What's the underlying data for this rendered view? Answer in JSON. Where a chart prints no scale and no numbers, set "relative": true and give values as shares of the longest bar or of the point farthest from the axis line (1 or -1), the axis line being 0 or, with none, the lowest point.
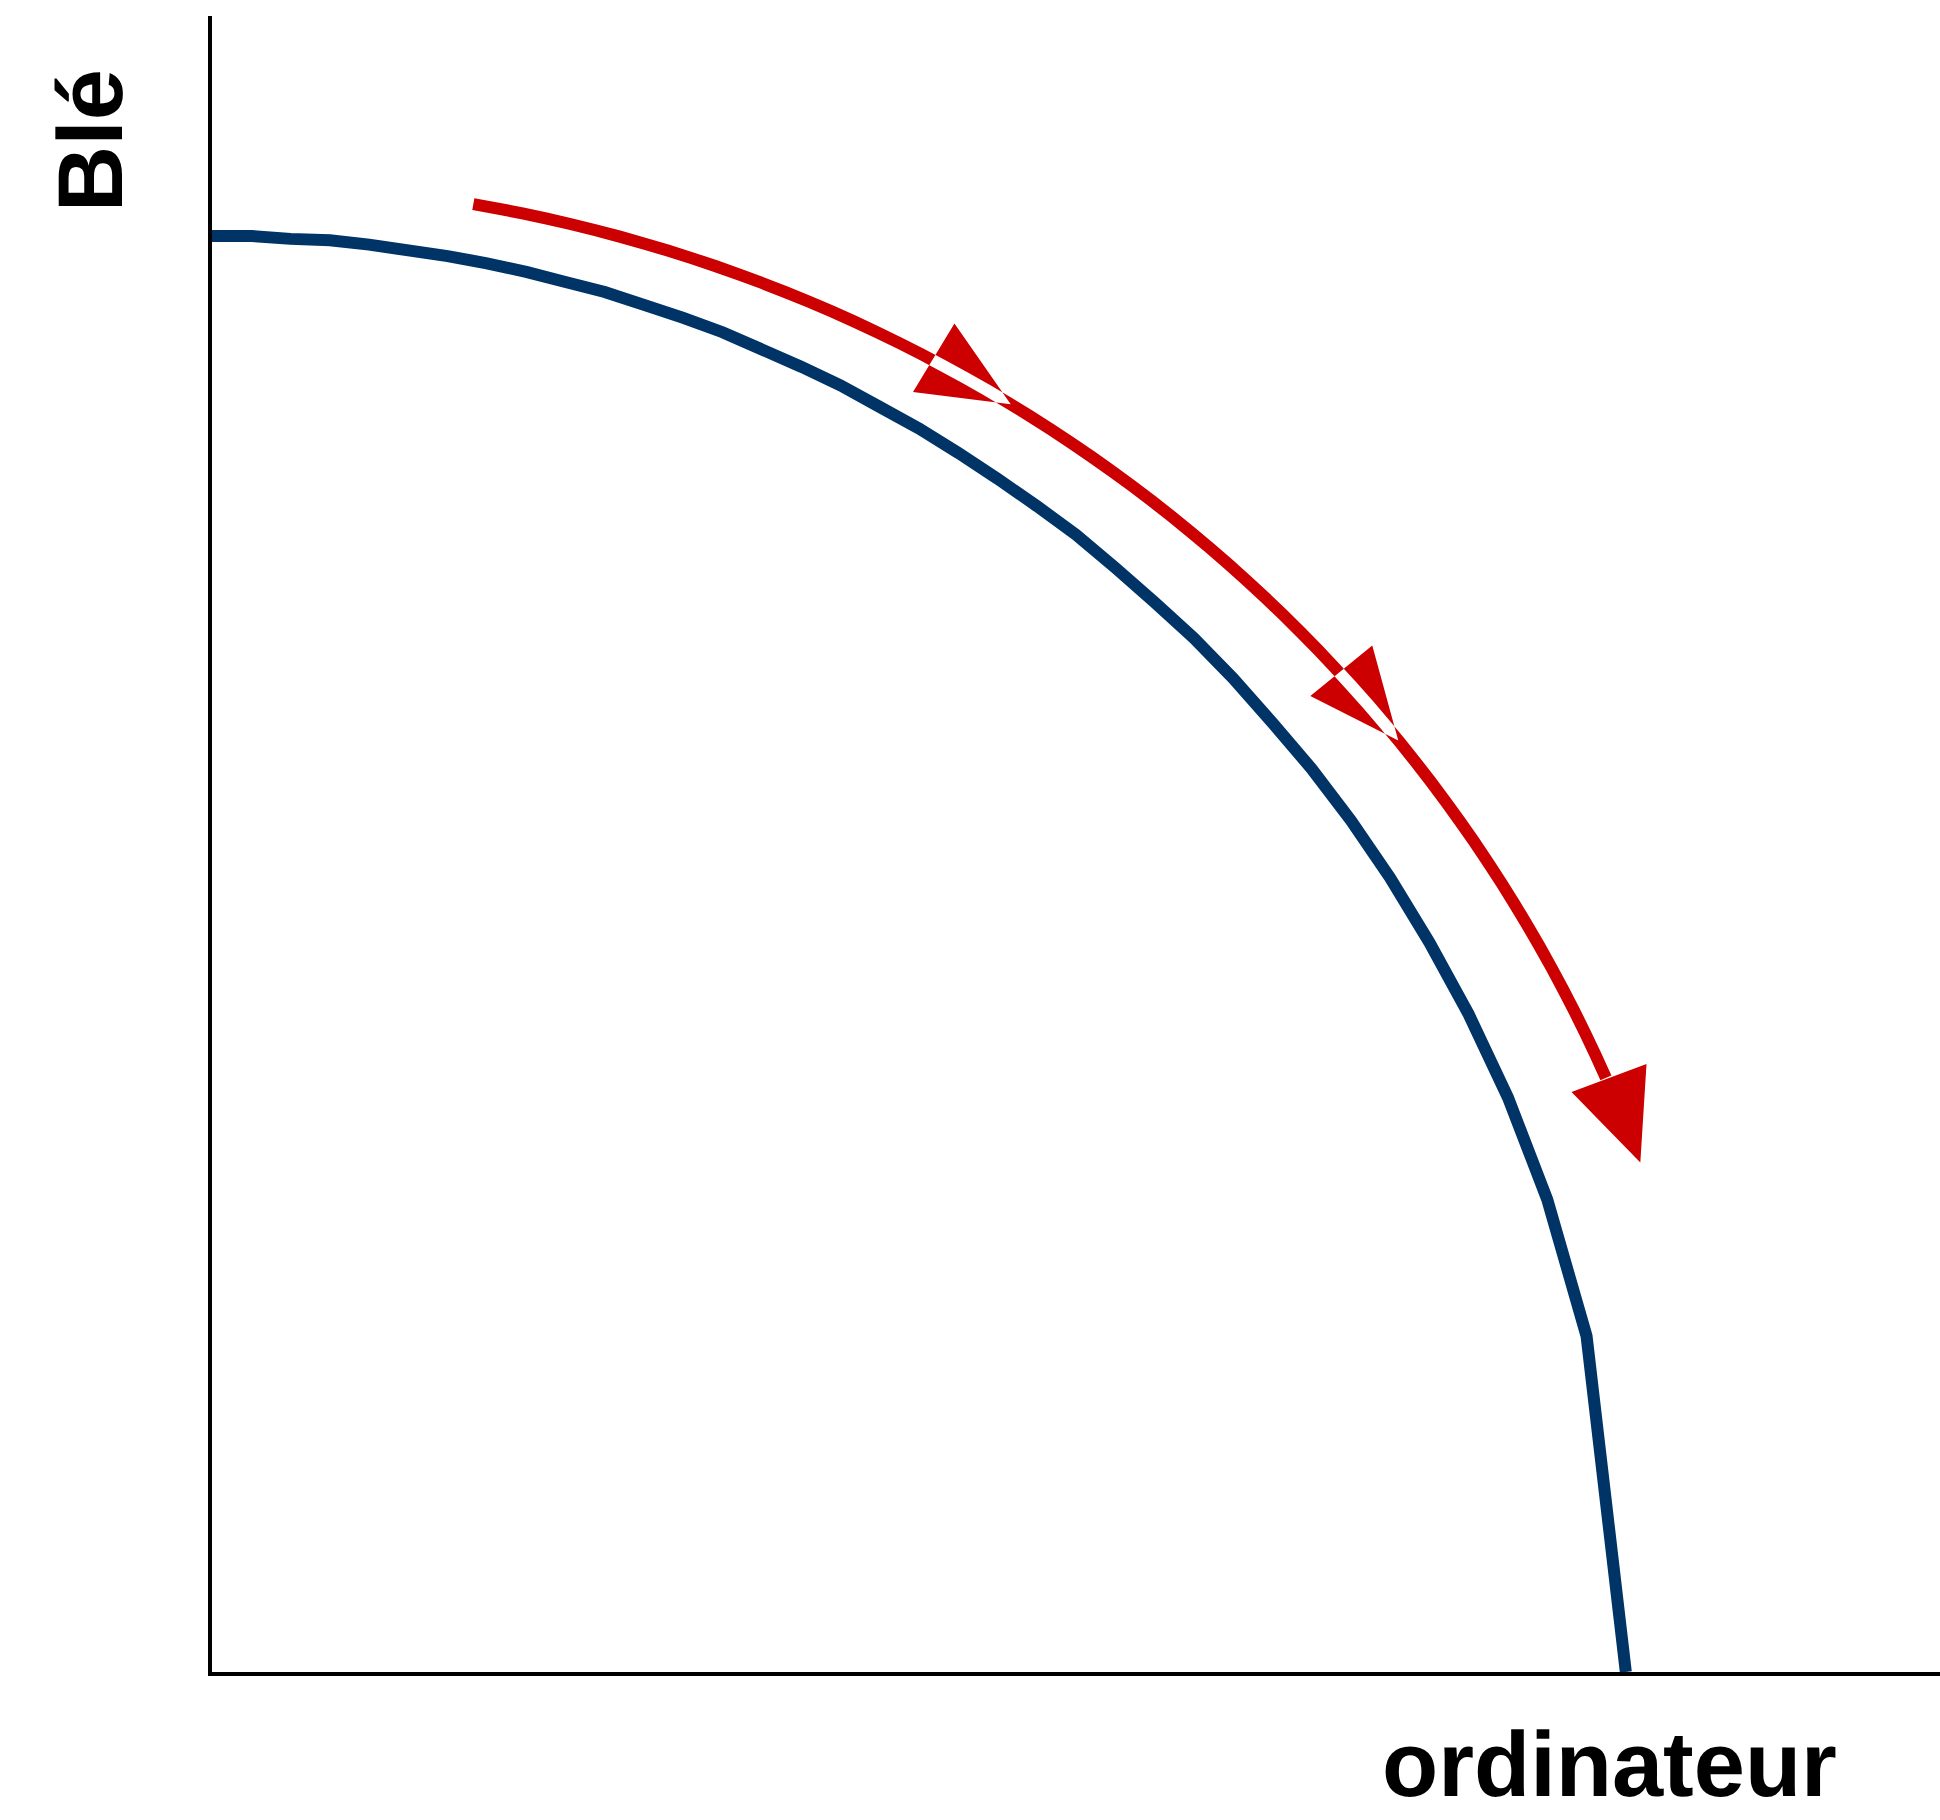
{
  "chart_data": {
    "type": "line",
    "relative": true,
    "xlabel": "ordinateur",
    "ylabel": "Blé",
    "categories": [
      null,
      null,
      null,
      null,
      null,
      null,
      null,
      null,
      null,
      null,
      null,
      null,
      null,
      null,
      null,
      null,
      null,
      null,
      null,
      null,
      null,
      null,
      null,
      null,
      null,
      null,
      null,
      null,
      null,
      null,
      null,
      null,
      null,
      null,
      null,
      null,
      null,
      null,
      null,
      null,
      null,
      null,
      null,
      null,
      null
    ],
    "series": [
      {
        "color": "#003366",
        "values": [
          1.0,
          1.0,
          0.998,
          0.997,
          0.994,
          0.99,
          0.986,
          0.981,
          0.975,
          0.968,
          0.961,
          0.952,
          0.943,
          0.933,
          0.921,
          0.909,
          0.896,
          0.881,
          0.866,
          0.849,
          0.831,
          0.812,
          0.792,
          0.769,
          0.745,
          0.72,
          0.692,
          0.661,
          0.629,
          0.593,
          0.553,
          0.508,
          0.458,
          0.4,
          0.329,
          0.234,
          0.0,
          null,
          null,
          null,
          null,
          null,
          null,
          null,
          null
        ]
      }
    ]
  }
}
